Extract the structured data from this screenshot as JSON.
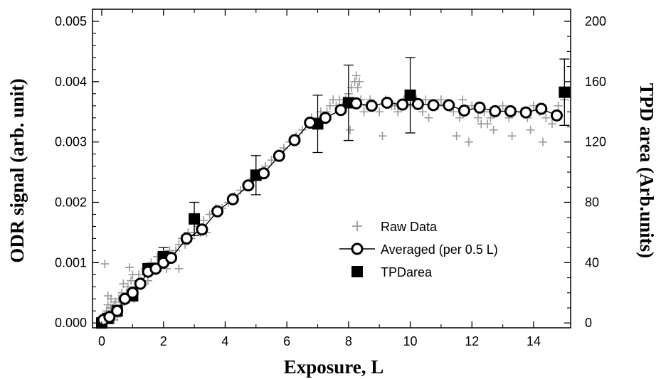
{
  "chart_data": {
    "type": "scatter",
    "xlabel": "Exposure, L",
    "ylabel": "ODR signal (arb. unit)",
    "y2label": "TPD area (Arb.units)",
    "xlim": [
      -0.3,
      15.2
    ],
    "ylim": [
      -8e-05,
      0.0052
    ],
    "y2lim": [
      -3.2,
      208
    ],
    "x_ticks": [
      0,
      2,
      4,
      6,
      8,
      10,
      12,
      14
    ],
    "x_tick_labels": [
      "0",
      "2",
      "4",
      "6",
      "8",
      "10",
      "12",
      "14"
    ],
    "y_ticks": [
      0,
      0.001,
      0.002,
      0.003,
      0.004,
      0.005
    ],
    "y_tick_labels": [
      "0.000",
      "0.001",
      "0.002",
      "0.003",
      "0.004",
      "0.005"
    ],
    "y2_ticks": [
      0,
      40,
      80,
      120,
      160,
      200
    ],
    "y2_tick_labels": [
      "0",
      "40",
      "80",
      "120",
      "160",
      "200"
    ],
    "legend_position": "center-right",
    "grid": false,
    "colors": {
      "raw": "#9a9a9a",
      "averaged": "#000000",
      "tpd": "#000000"
    },
    "series": [
      {
        "name": "Raw Data",
        "marker": "plus",
        "x": [
          0.05,
          0.08,
          0.1,
          0.12,
          0.15,
          0.18,
          0.2,
          0.22,
          0.25,
          0.28,
          0.3,
          0.32,
          0.35,
          0.4,
          0.45,
          0.5,
          0.55,
          0.6,
          0.65,
          0.7,
          0.75,
          0.8,
          0.85,
          0.9,
          0.95,
          1.0,
          1.05,
          1.1,
          1.2,
          1.3,
          1.4,
          1.5,
          1.6,
          1.7,
          1.8,
          1.9,
          2.0,
          2.1,
          2.2,
          2.3,
          2.4,
          2.5,
          2.6,
          2.7,
          2.8,
          2.9,
          3.0,
          3.1,
          3.2,
          3.3,
          3.5,
          3.7,
          3.9,
          4.1,
          4.3,
          4.5,
          4.7,
          4.9,
          5.1,
          5.3,
          5.5,
          5.7,
          5.9,
          6.1,
          6.3,
          6.5,
          6.7,
          6.8,
          6.9,
          7.0,
          7.1,
          7.2,
          7.3,
          7.4,
          7.5,
          7.6,
          7.7,
          7.8,
          7.9,
          8.0,
          8.1,
          8.2,
          8.3,
          8.4,
          8.5,
          8.6,
          8.7,
          8.8,
          9.0,
          9.2,
          9.4,
          9.6,
          9.8,
          10.0,
          10.2,
          10.4,
          10.6,
          10.8,
          11.0,
          11.2,
          11.4,
          11.6,
          11.7,
          11.8,
          12.0,
          12.2,
          12.4,
          12.5,
          12.6,
          12.8,
          13.0,
          13.2,
          13.4,
          13.6,
          13.8,
          14.0,
          14.2,
          14.4,
          14.6,
          14.8,
          15.0,
          0.1,
          0.3,
          0.5,
          0.2,
          0.4,
          0.15,
          0.7,
          0.9,
          1.0,
          1.2,
          1.5,
          1.8,
          2.5,
          3.4,
          11.5,
          11.9,
          12.3,
          12.7,
          13.3,
          13.9,
          14.3,
          8.25,
          8.35,
          8.05,
          9.1,
          9.5,
          10.5,
          10.9
        ],
        "y": [
          2e-05,
          5e-05,
          0.00012,
          3e-05,
          0.0002,
          0.0001,
          0.0003,
          0.00015,
          8e-05,
          0.00025,
          0.0002,
          0.0001,
          0.00025,
          0.0003,
          0.00035,
          0.0002,
          0.0004,
          0.0003,
          0.0005,
          0.0004,
          0.00035,
          0.0005,
          0.0006,
          0.0004,
          0.0007,
          0.0005,
          0.0004,
          0.0006,
          0.0007,
          0.0007,
          0.0009,
          0.0008,
          0.001,
          0.0009,
          0.0011,
          0.001,
          0.0011,
          0.0009,
          0.0012,
          0.0011,
          0.0012,
          0.0013,
          0.0014,
          0.0013,
          0.0015,
          0.0014,
          0.0015,
          0.0016,
          0.0015,
          0.0017,
          0.0018,
          0.0019,
          0.0019,
          0.002,
          0.0021,
          0.0022,
          0.0023,
          0.0024,
          0.0025,
          0.0026,
          0.0027,
          0.0028,
          0.0029,
          0.003,
          0.0031,
          0.0032,
          0.0033,
          0.0034,
          0.0033,
          0.0034,
          0.0035,
          0.0034,
          0.0035,
          0.0036,
          0.0037,
          0.0036,
          0.0037,
          0.0036,
          0.0037,
          0.0038,
          0.0039,
          0.004,
          0.0039,
          0.0037,
          0.0035,
          0.0036,
          0.0037,
          0.0036,
          0.0035,
          0.0037,
          0.0036,
          0.0035,
          0.0037,
          0.0036,
          0.0037,
          0.0035,
          0.0034,
          0.0036,
          0.0037,
          0.0036,
          0.0035,
          0.0034,
          0.0037,
          0.0035,
          0.0036,
          0.0034,
          0.0035,
          0.0033,
          0.0034,
          0.0035,
          0.0036,
          0.0034,
          0.0035,
          0.0035,
          0.0034,
          0.0036,
          0.0035,
          0.0034,
          0.0033,
          0.0036,
          0.0037,
          0.00098,
          0.0004,
          0.0001,
          0.00045,
          5e-05,
          0.0001,
          0.00065,
          0.00092,
          0.0008,
          0.0008,
          0.0007,
          0.0011,
          0.0009,
          0.0015,
          0.0031,
          0.003,
          0.0033,
          0.0032,
          0.0031,
          0.0032,
          0.003,
          0.0041,
          0.004,
          0.0032,
          0.0031,
          0.0036,
          0.0037,
          0.0036
        ]
      },
      {
        "name": "Averaged (per 0.5 L)",
        "marker": "open-circle",
        "line": true,
        "x": [
          0.05,
          0.25,
          0.5,
          0.75,
          1.0,
          1.25,
          1.5,
          1.75,
          2.0,
          2.25,
          2.75,
          3.25,
          3.75,
          4.25,
          4.75,
          5.25,
          5.75,
          6.25,
          6.75,
          7.25,
          7.75,
          8.25,
          8.75,
          9.25,
          9.75,
          10.25,
          10.75,
          11.25,
          11.75,
          12.25,
          12.75,
          13.25,
          13.75,
          14.25,
          14.75
        ],
        "y": [
          5e-05,
          0.0001,
          0.0002,
          0.0004,
          0.0005,
          0.00065,
          0.00085,
          0.0009,
          0.001,
          0.00108,
          0.0014,
          0.00155,
          0.00185,
          0.00205,
          0.00228,
          0.00248,
          0.00277,
          0.00303,
          0.00332,
          0.0034,
          0.00353,
          0.00364,
          0.0036,
          0.00365,
          0.00362,
          0.00363,
          0.00361,
          0.00361,
          0.00352,
          0.00357,
          0.00351,
          0.00351,
          0.00349,
          0.00355,
          0.00344
        ]
      },
      {
        "name": "TPDarea",
        "marker": "filled-square",
        "axis": "right",
        "x": [
          0.0,
          0.2,
          0.5,
          1.0,
          1.5,
          2.0,
          3.0,
          5.0,
          7.0,
          8.0,
          10.0,
          15.0
        ],
        "y": [
          0,
          3,
          8,
          18,
          36,
          44,
          69,
          98,
          132,
          146,
          151,
          153
        ],
        "err": [
          0,
          0,
          0,
          0,
          0,
          6,
          11,
          13,
          19,
          25,
          25,
          22
        ]
      }
    ]
  }
}
